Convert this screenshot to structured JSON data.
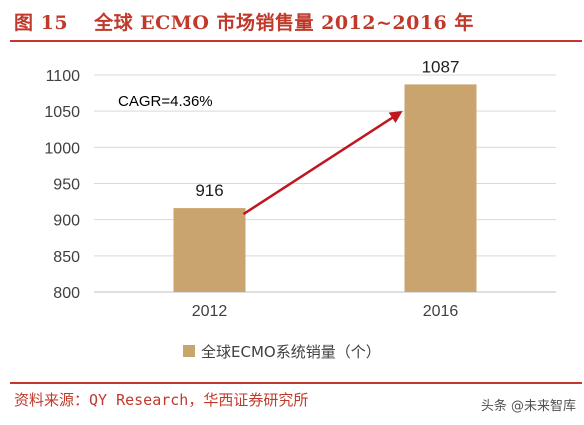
{
  "header": {
    "figure_number": "图 15",
    "title": "全球 ECMO 市场销售量 2012~2016 年"
  },
  "colors": {
    "accent": "#c0392b",
    "bar": "#c9a46e",
    "arrow": "#c0161f",
    "grid": "#d9d9d9"
  },
  "chart_data": {
    "type": "bar",
    "categories": [
      "2012",
      "2016"
    ],
    "series": [
      {
        "name": "全球ECMO系统销量（个）",
        "values": [
          916,
          1087
        ]
      }
    ],
    "ylim": [
      800,
      1100
    ],
    "yticks": [
      800,
      850,
      900,
      950,
      1000,
      1050,
      1100
    ],
    "annotation": "CAGR=4.36%",
    "legend_position": "bottom",
    "grid": true
  },
  "footer": {
    "source": "资料来源：QY Research，华西证券研究所",
    "watermark": "头条 @未来智库"
  }
}
